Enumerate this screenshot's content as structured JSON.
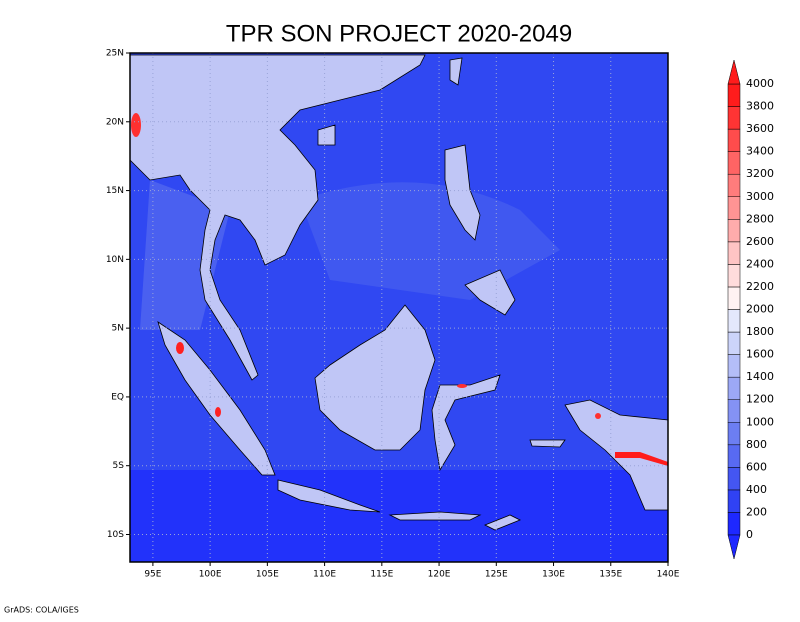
{
  "chart_data": {
    "type": "contour-map",
    "title": "TPR SON PROJECT 2020-2049",
    "xlim": [
      93,
      140
    ],
    "ylim": [
      -12,
      25
    ],
    "xticks": [
      {
        "value": 95,
        "label": "95E"
      },
      {
        "value": 100,
        "label": "100E"
      },
      {
        "value": 105,
        "label": "105E"
      },
      {
        "value": 110,
        "label": "110E"
      },
      {
        "value": 115,
        "label": "115E"
      },
      {
        "value": 120,
        "label": "120E"
      },
      {
        "value": 125,
        "label": "125E"
      },
      {
        "value": 130,
        "label": "130E"
      },
      {
        "value": 135,
        "label": "135E"
      },
      {
        "value": 140,
        "label": "140E"
      }
    ],
    "yticks": [
      {
        "value": -10,
        "label": "10S"
      },
      {
        "value": -5,
        "label": "5S"
      },
      {
        "value": 0,
        "label": "EQ"
      },
      {
        "value": 5,
        "label": "5N"
      },
      {
        "value": 10,
        "label": "10N"
      },
      {
        "value": 15,
        "label": "15N"
      },
      {
        "value": 20,
        "label": "20N"
      },
      {
        "value": 25,
        "label": "25N"
      }
    ],
    "grid": true,
    "levels": [
      0,
      200,
      400,
      600,
      800,
      1000,
      1200,
      1400,
      1600,
      1800,
      2000,
      2200,
      2400,
      2600,
      2800,
      3000,
      3200,
      3400,
      3600,
      3800,
      4000
    ],
    "colors": [
      "#1e28ff",
      "#3042f4",
      "#4456f2",
      "#586af2",
      "#6c7ef2",
      "#8492f4",
      "#9ca8f6",
      "#b4bef8",
      "#ccd4fa",
      "#e4e8fc",
      "#fff2f2",
      "#ffdcdc",
      "#ffc4c4",
      "#ffacac",
      "#ff9494",
      "#ff7c7c",
      "#ff6464",
      "#ff4c4c",
      "#ff3434",
      "#ff1c1c"
    ],
    "credit": "GrADS: COLA/IGES"
  }
}
